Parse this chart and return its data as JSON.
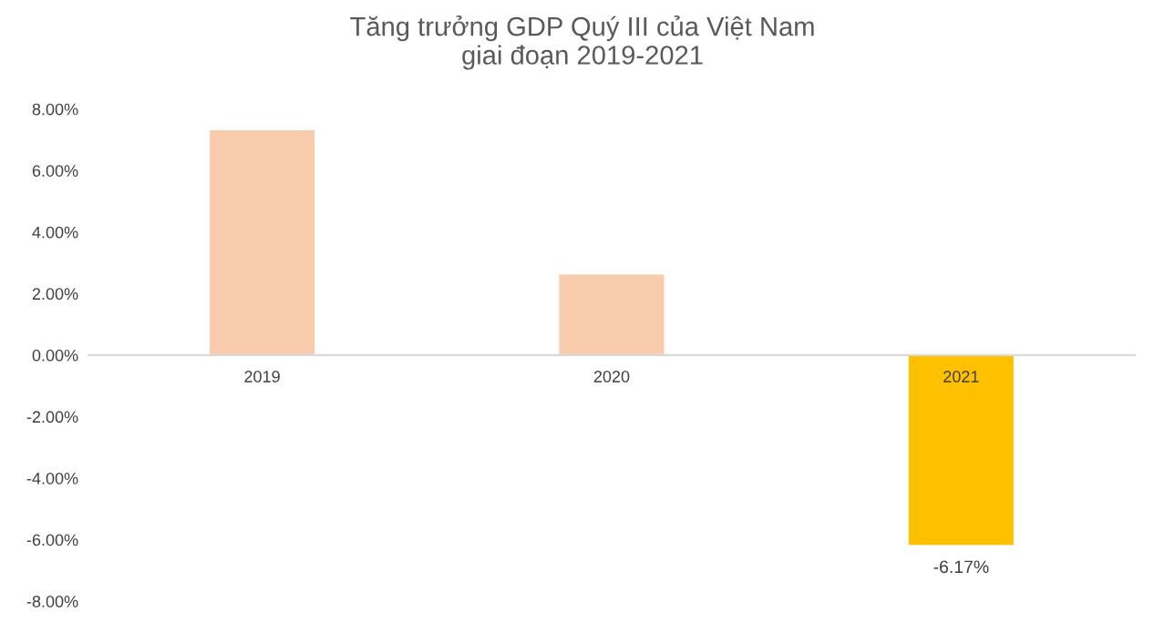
{
  "chart_data": {
    "type": "bar",
    "title": "Tăng trưởng GDP Quý III của Việt Nam\ngiai đoạn 2019-2021",
    "categories": [
      "2019",
      "2020",
      "2021"
    ],
    "values": [
      7.31,
      2.62,
      -6.17
    ],
    "colors": [
      "#f8cbad",
      "#f8cbad",
      "#ffc000"
    ],
    "value_labels": [
      null,
      null,
      "-6.17%"
    ],
    "ylim": [
      -8,
      8
    ],
    "yticks": [
      {
        "value": -8,
        "label": "-8.00%"
      },
      {
        "value": -6,
        "label": "-6.00%"
      },
      {
        "value": -4,
        "label": "-4.00%"
      },
      {
        "value": -2,
        "label": "-2.00%"
      },
      {
        "value": 0,
        "label": "0.00%"
      },
      {
        "value": 2,
        "label": "2.00%"
      },
      {
        "value": 4,
        "label": "4.00%"
      },
      {
        "value": 6,
        "label": "6.00%"
      },
      {
        "value": 8,
        "label": "8.00%"
      }
    ],
    "grid": false,
    "legend": false
  }
}
